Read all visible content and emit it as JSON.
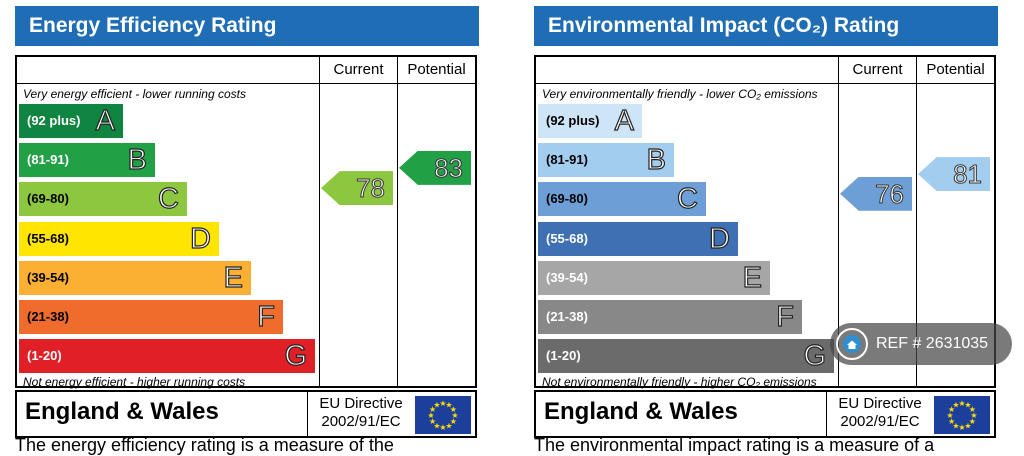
{
  "chart_data": [
    {
      "type": "bar",
      "title": "Energy Efficiency Rating",
      "columns": {
        "current": "Current",
        "potential": "Potential"
      },
      "top_note": "Very energy efficient - lower running costs",
      "bottom_note": "Not energy efficient - higher running costs",
      "categories": [
        "(92 plus)",
        "(81-91)",
        "(69-80)",
        "(55-68)",
        "(39-54)",
        "(21-38)",
        "(1-20)"
      ],
      "letters": [
        "A",
        "B",
        "C",
        "D",
        "E",
        "F",
        "G"
      ],
      "colors": [
        "#0f8541",
        "#22a046",
        "#8dc63f",
        "#ffe500",
        "#fbb034",
        "#ef6c2c",
        "#e01f26"
      ],
      "range_text_colors": [
        "#ffffff",
        "#ffffff",
        "#000000",
        "#000000",
        "#000000",
        "#000000",
        "#ffffff"
      ],
      "current": {
        "value": 78,
        "color": "#8dc63f"
      },
      "potential": {
        "value": 83,
        "color": "#22a046"
      },
      "footer": {
        "region": "England & Wales",
        "directive": "EU Directive\n2002/91/EC"
      }
    },
    {
      "type": "bar",
      "title": "Environmental Impact (CO₂) Rating",
      "columns": {
        "current": "Current",
        "potential": "Potential"
      },
      "top_note": "Very environmentally friendly - lower CO₂ emissions",
      "bottom_note": "Not environmentally friendly - higher CO₂ emissions",
      "categories": [
        "(92 plus)",
        "(81-91)",
        "(69-80)",
        "(55-68)",
        "(39-54)",
        "(21-38)",
        "(1-20)"
      ],
      "letters": [
        "A",
        "B",
        "C",
        "D",
        "E",
        "F",
        "G"
      ],
      "colors": [
        "#cde5f7",
        "#a3cdee",
        "#6d9fd6",
        "#3f70b4",
        "#a6a6a6",
        "#888888",
        "#6b6b6b"
      ],
      "range_text_colors": [
        "#000000",
        "#000000",
        "#000000",
        "#ffffff",
        "#ffffff",
        "#ffffff",
        "#ffffff"
      ],
      "current": {
        "value": 76,
        "color": "#6d9fd6"
      },
      "potential": {
        "value": 81,
        "color": "#a3cdee"
      },
      "footer": {
        "region": "England & Wales",
        "directive": "EU Directive\n2002/91/EC"
      }
    }
  ],
  "badge": {
    "text": "REF # 2631035"
  },
  "cutoff": {
    "left": "The energy efficiency rating is a measure of the",
    "right": "The environmental impact rating is a measure of a"
  },
  "accent_color": "#1f6db5"
}
